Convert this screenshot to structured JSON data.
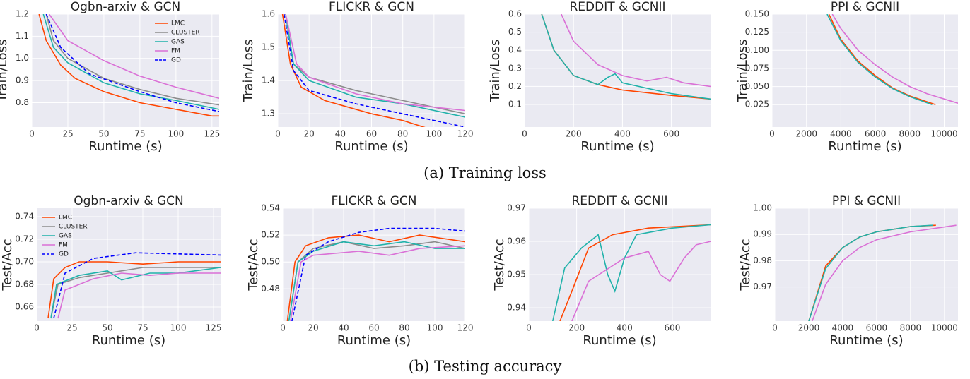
{
  "chart_data": [
    {
      "type": "line",
      "title": "Ogbn-arxiv & GCN",
      "xlabel": "Runtime (s)",
      "ylabel": "Train/Loss",
      "legend": "upper right",
      "grid": true,
      "xlim": [
        0,
        130
      ],
      "xticks": [
        0,
        25,
        50,
        75,
        100,
        125
      ],
      "ylim": [
        0.69,
        1.2
      ],
      "yticks": [
        0.8,
        0.9,
        {
          "value": 1,
          "label": "1.0"
        },
        1.1,
        1.2
      ],
      "series": [
        {
          "name": "LMC",
          "color": "#ff4500",
          "x": [
            5,
            10,
            20,
            30,
            50,
            75,
            100,
            125,
            130
          ],
          "values": [
            1.2,
            1.08,
            0.97,
            0.91,
            0.85,
            0.8,
            0.77,
            0.74,
            0.74
          ]
        },
        {
          "name": "CLUSTER",
          "color": "#8c8c8c",
          "x": [
            10,
            15,
            25,
            50,
            75,
            100,
            130
          ],
          "values": [
            1.2,
            1.08,
            1.0,
            0.91,
            0.86,
            0.82,
            0.79
          ]
        },
        {
          "name": "GAS",
          "color": "#20b2aa",
          "x": [
            8,
            15,
            25,
            50,
            75,
            100,
            130
          ],
          "values": [
            1.2,
            1.05,
            0.98,
            0.89,
            0.84,
            0.81,
            0.77
          ]
        },
        {
          "name": "FM",
          "color": "#da70d6",
          "x": [
            12,
            25,
            50,
            75,
            100,
            130
          ],
          "values": [
            1.2,
            1.08,
            0.99,
            0.92,
            0.87,
            0.82
          ]
        },
        {
          "name": "GD",
          "color": "#0000ff",
          "dash": true,
          "x": [
            10,
            20,
            40,
            75,
            100,
            130
          ],
          "values": [
            1.2,
            1.05,
            0.93,
            0.85,
            0.8,
            0.76
          ]
        }
      ]
    },
    {
      "type": "line",
      "title": "FLICKR & GCN",
      "xlabel": "Runtime (s)",
      "ylabel": "Train/Loss",
      "grid": true,
      "xlim": [
        0,
        120
      ],
      "xticks": [
        0,
        20,
        40,
        60,
        80,
        100,
        120
      ],
      "ylim": [
        1.26,
        1.6
      ],
      "yticks": [
        1.3,
        1.4,
        1.5,
        1.6
      ],
      "series": [
        {
          "color": "#ff4500",
          "x": [
            3,
            8,
            15,
            30,
            60,
            80,
            100
          ],
          "values": [
            1.6,
            1.45,
            1.38,
            1.34,
            1.3,
            1.28,
            1.25
          ]
        },
        {
          "color": "#8c8c8c",
          "x": [
            5,
            10,
            20,
            50,
            80,
            120
          ],
          "values": [
            1.6,
            1.45,
            1.41,
            1.37,
            1.34,
            1.3
          ]
        },
        {
          "color": "#20b2aa",
          "x": [
            5,
            10,
            20,
            50,
            80,
            120
          ],
          "values": [
            1.6,
            1.45,
            1.4,
            1.35,
            1.33,
            1.29
          ]
        },
        {
          "color": "#da70d6",
          "x": [
            5,
            12,
            20,
            50,
            80,
            120
          ],
          "values": [
            1.6,
            1.45,
            1.41,
            1.36,
            1.33,
            1.31
          ]
        },
        {
          "color": "#0000ff",
          "dash": true,
          "x": [
            4,
            10,
            20,
            50,
            80,
            120
          ],
          "values": [
            1.6,
            1.43,
            1.37,
            1.33,
            1.3,
            1.26
          ]
        }
      ]
    },
    {
      "type": "line",
      "title": "REDDIT & GCNII",
      "xlabel": "Runtime (s)",
      "ylabel": "Train/Loss",
      "grid": true,
      "xlim": [
        0,
        760
      ],
      "xticks": [
        0,
        200,
        400,
        600
      ],
      "ylim": [
        -0.025,
        0.6
      ],
      "yticks": [
        0.1,
        0.2,
        0.3,
        0.4,
        0.5,
        0.6
      ],
      "series": [
        {
          "color": "#ff4500",
          "x": [
            70,
            120,
            200,
            300,
            400,
            600,
            760
          ],
          "values": [
            0.6,
            0.4,
            0.26,
            0.21,
            0.18,
            0.15,
            0.13
          ]
        },
        {
          "color": "#20b2aa",
          "x": [
            70,
            120,
            200,
            300,
            340,
            370,
            400,
            600,
            760
          ],
          "values": [
            0.6,
            0.4,
            0.26,
            0.21,
            0.25,
            0.27,
            0.22,
            0.16,
            0.13
          ]
        },
        {
          "color": "#da70d6",
          "x": [
            150,
            200,
            300,
            400,
            500,
            580,
            650,
            760
          ],
          "values": [
            0.6,
            0.45,
            0.32,
            0.26,
            0.23,
            0.25,
            0.22,
            0.2
          ]
        }
      ]
    },
    {
      "type": "line",
      "title": "PPI & GCNII",
      "xlabel": "Runtime (s)",
      "ylabel": "Train/Loss",
      "grid": true,
      "xlim": [
        0,
        10800
      ],
      "xticks": [
        0,
        2000,
        4000,
        6000,
        8000,
        10000
      ],
      "ylim": [
        -0.006,
        0.15
      ],
      "yticks": [
        0.025,
        {
          "value": 0.05,
          "label": "0.050"
        },
        0.075,
        {
          "value": 0.1,
          "label": "0.100"
        },
        0.125,
        {
          "value": 0.15,
          "label": "0.150"
        }
      ],
      "series": [
        {
          "color": "#ff4500",
          "x": [
            3300,
            4000,
            5000,
            6000,
            7000,
            8000,
            9500
          ],
          "values": [
            0.15,
            0.115,
            0.085,
            0.065,
            0.048,
            0.037,
            0.025
          ]
        },
        {
          "color": "#20b2aa",
          "x": [
            3200,
            4000,
            5000,
            6000,
            7000,
            8000,
            9300
          ],
          "values": [
            0.15,
            0.113,
            0.083,
            0.063,
            0.047,
            0.036,
            0.025
          ]
        },
        {
          "color": "#da70d6",
          "x": [
            3500,
            4000,
            5000,
            6000,
            7000,
            8000,
            9000,
            10800
          ],
          "values": [
            0.15,
            0.13,
            0.1,
            0.08,
            0.063,
            0.05,
            0.04,
            0.027
          ]
        }
      ]
    },
    {
      "type": "line",
      "title": "Ogbn-arxiv & GCN",
      "xlabel": "Runtime (s)",
      "ylabel": "Test/Acc",
      "legend": "upper left",
      "grid": true,
      "xlim": [
        0,
        130
      ],
      "xticks": [
        0,
        25,
        50,
        75,
        100,
        125
      ],
      "ylim": [
        0.6475,
        0.7475
      ],
      "yticks": [
        0.66,
        0.68,
        {
          "value": 0.7,
          "label": "0.70"
        },
        0.72,
        0.74
      ],
      "series": [
        {
          "name": "LMC",
          "color": "#ff4500",
          "x": [
            8,
            12,
            20,
            30,
            50,
            75,
            100,
            130
          ],
          "values": [
            0.65,
            0.685,
            0.695,
            0.7,
            0.7,
            0.698,
            0.7,
            0.7
          ]
        },
        {
          "name": "CLUSTER",
          "color": "#8c8c8c",
          "x": [
            10,
            15,
            30,
            50,
            75,
            100,
            130
          ],
          "values": [
            0.65,
            0.68,
            0.686,
            0.69,
            0.695,
            0.695,
            0.695
          ]
        },
        {
          "name": "GAS",
          "color": "#20b2aa",
          "x": [
            10,
            14,
            30,
            50,
            60,
            80,
            100,
            130
          ],
          "values": [
            0.65,
            0.68,
            0.688,
            0.692,
            0.684,
            0.69,
            0.69,
            0.695
          ]
        },
        {
          "name": "FM",
          "color": "#da70d6",
          "x": [
            15,
            20,
            40,
            60,
            80,
            100,
            130
          ],
          "values": [
            0.65,
            0.675,
            0.685,
            0.69,
            0.688,
            0.69,
            0.69
          ]
        },
        {
          "name": "GD",
          "color": "#0000ff",
          "dash": true,
          "x": [
            12,
            20,
            40,
            70,
            100,
            130
          ],
          "values": [
            0.65,
            0.69,
            0.703,
            0.708,
            0.707,
            0.706
          ]
        }
      ]
    },
    {
      "type": "line",
      "title": "FLICKR & GCN",
      "xlabel": "Runtime (s)",
      "ylabel": "Test/Acc",
      "grid": true,
      "xlim": [
        0,
        120
      ],
      "xticks": [
        0,
        20,
        40,
        60,
        80,
        100,
        120
      ],
      "ylim": [
        0.456,
        0.54
      ],
      "yticks": [
        0.48,
        {
          "value": 0.5,
          "label": "0.50"
        },
        0.52,
        0.54
      ],
      "series": [
        {
          "color": "#ff4500",
          "x": [
            3,
            8,
            15,
            30,
            50,
            70,
            90,
            120
          ],
          "values": [
            0.456,
            0.5,
            0.512,
            0.518,
            0.52,
            0.515,
            0.52,
            0.515
          ]
        },
        {
          "color": "#8c8c8c",
          "x": [
            4,
            10,
            20,
            40,
            60,
            80,
            100,
            120
          ],
          "values": [
            0.456,
            0.5,
            0.51,
            0.515,
            0.51,
            0.512,
            0.515,
            0.51
          ]
        },
        {
          "color": "#20b2aa",
          "x": [
            4,
            10,
            20,
            40,
            60,
            80,
            100,
            120
          ],
          "values": [
            0.456,
            0.5,
            0.508,
            0.515,
            0.512,
            0.515,
            0.51,
            0.51
          ]
        },
        {
          "color": "#da70d6",
          "x": [
            5,
            12,
            20,
            50,
            70,
            90,
            120
          ],
          "values": [
            0.456,
            0.5,
            0.505,
            0.508,
            0.505,
            0.51,
            0.512
          ]
        },
        {
          "color": "#0000ff",
          "dash": true,
          "x": [
            6,
            15,
            30,
            50,
            70,
            100,
            120
          ],
          "values": [
            0.456,
            0.505,
            0.515,
            0.522,
            0.525,
            0.525,
            0.523
          ]
        }
      ]
    },
    {
      "type": "line",
      "title": "REDDIT & GCNII",
      "xlabel": "Runtime (s)",
      "ylabel": "Test/Acc",
      "grid": true,
      "xlim": [
        0,
        760
      ],
      "xticks": [
        0,
        200,
        400,
        600
      ],
      "ylim": [
        0.936,
        0.97
      ],
      "yticks": [
        0.94,
        0.95,
        0.96,
        0.97
      ],
      "series": [
        {
          "color": "#ff4500",
          "x": [
            130,
            180,
            250,
            350,
            500,
            760
          ],
          "values": [
            0.936,
            0.945,
            0.958,
            0.962,
            0.964,
            0.965
          ]
        },
        {
          "color": "#20b2aa",
          "x": [
            100,
            150,
            220,
            290,
            330,
            360,
            400,
            450,
            600,
            760
          ],
          "values": [
            0.936,
            0.952,
            0.958,
            0.962,
            0.95,
            0.945,
            0.955,
            0.962,
            0.964,
            0.965
          ]
        },
        {
          "color": "#da70d6",
          "x": [
            180,
            250,
            400,
            500,
            550,
            590,
            650,
            700,
            760
          ],
          "values": [
            0.936,
            0.948,
            0.955,
            0.957,
            0.95,
            0.948,
            0.955,
            0.959,
            0.96
          ]
        }
      ]
    },
    {
      "type": "line",
      "title": "PPI & GCNII",
      "xlabel": "Runtime (s)",
      "ylabel": "Test/Acc",
      "grid": true,
      "xlim": [
        0,
        10800
      ],
      "xticks": [
        0,
        2000,
        4000,
        6000,
        8000,
        10000
      ],
      "ylim": [
        0.957,
        1.0
      ],
      "yticks": [
        0.97,
        0.98,
        0.99,
        {
          "value": 1,
          "label": "1.00"
        }
      ],
      "series": [
        {
          "color": "#ff4500",
          "x": [
            2000,
            3000,
            4000,
            5000,
            6000,
            8000,
            9500
          ],
          "values": [
            0.957,
            0.978,
            0.985,
            0.989,
            0.991,
            0.993,
            0.9935
          ]
        },
        {
          "color": "#20b2aa",
          "x": [
            2000,
            3000,
            4000,
            5000,
            6000,
            8000,
            9300
          ],
          "values": [
            0.957,
            0.977,
            0.985,
            0.989,
            0.991,
            0.993,
            0.9935
          ]
        },
        {
          "color": "#da70d6",
          "x": [
            2200,
            3000,
            4000,
            5000,
            6000,
            8000,
            10700
          ],
          "values": [
            0.957,
            0.971,
            0.98,
            0.985,
            0.988,
            0.991,
            0.9935
          ]
        }
      ]
    }
  ],
  "captions": [
    "(a) Training loss",
    "(b) Testing accuracy"
  ]
}
